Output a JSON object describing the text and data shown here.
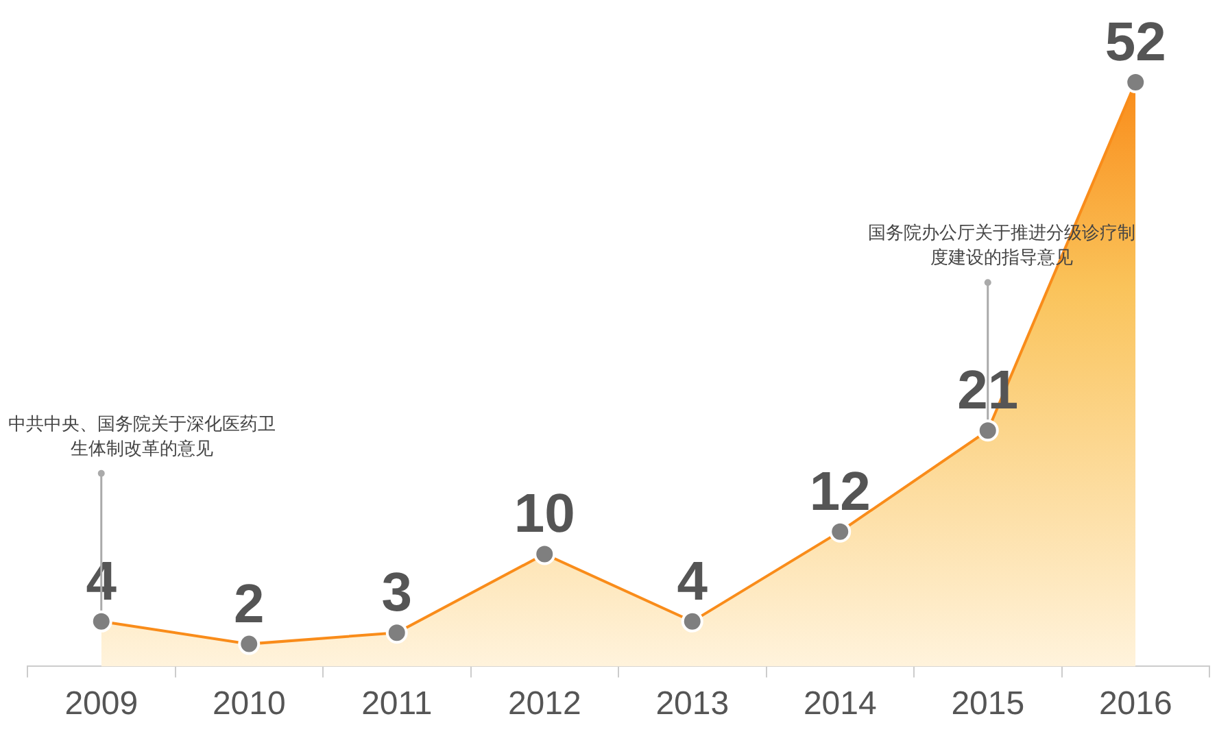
{
  "chart_data": {
    "type": "area",
    "categories": [
      "2009",
      "2010",
      "2011",
      "2012",
      "2013",
      "2014",
      "2015",
      "2016"
    ],
    "values": [
      4,
      2,
      3,
      10,
      4,
      12,
      21,
      52
    ],
    "color": "#f98c1a",
    "marker": "circle",
    "data_labels": true,
    "grid": false,
    "legend": false,
    "annotations": [
      {
        "text": "中共中央、国务院关于深化医药卫生体制改革的意见",
        "x": "2009",
        "y": 4
      },
      {
        "text": "国务院办公厅关于推进分级诊疗制度建设的指导意见",
        "x": "2015",
        "y": 21
      }
    ]
  }
}
